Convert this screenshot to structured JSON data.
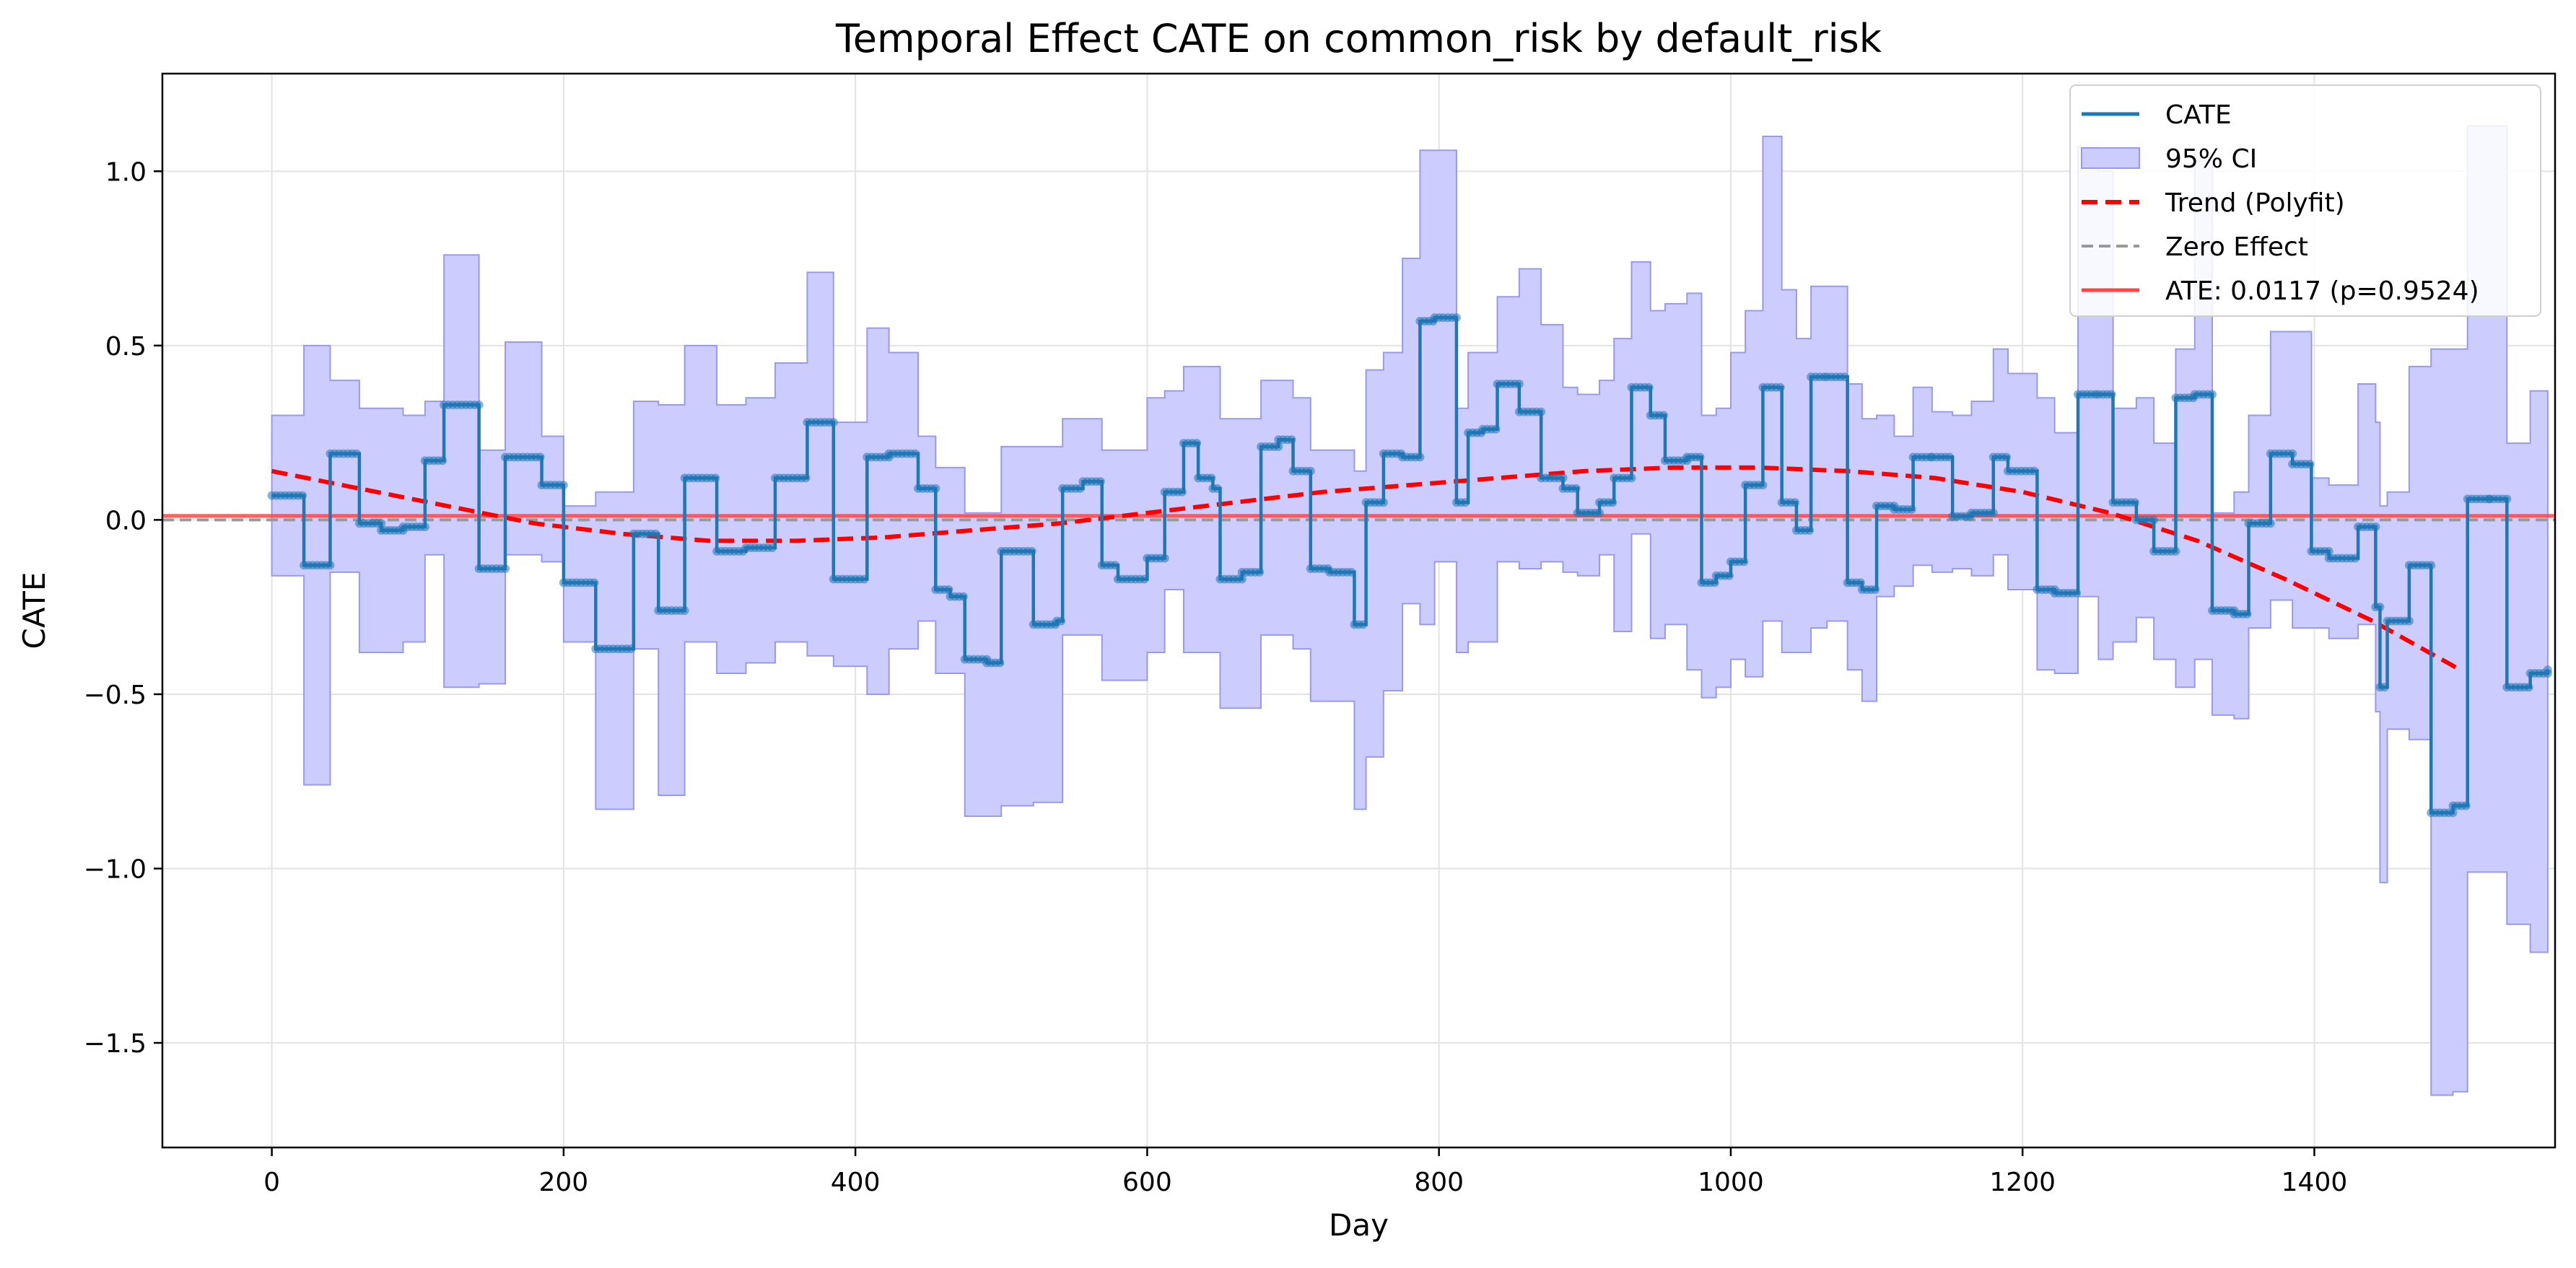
{
  "chart_data": {
    "type": "line",
    "title": "Temporal Effect CATE  on common_risk by default_risk",
    "xlabel": "Day",
    "ylabel": "CATE",
    "xlim": [
      -75,
      1565
    ],
    "ylim": [
      -1.8,
      1.28
    ],
    "xticks": [
      0,
      200,
      400,
      600,
      800,
      1000,
      1200,
      1400
    ],
    "yticks": [
      1.0,
      0.5,
      0.0,
      -0.5,
      -1.0,
      -1.5
    ],
    "ytick_labels": [
      "1.0",
      "0.5",
      "0.0",
      "−0.5",
      "−1.0",
      "−1.5"
    ],
    "grid": true,
    "legend_position": "upper-right",
    "legend": [
      "CATE",
      "95% CI",
      "Trend (Polyfit)",
      "Zero Effect",
      "ATE: 0.0117 (p=0.9524)"
    ],
    "ate_value": 0.0117,
    "ate_p": 0.9524,
    "zero_effect": 0.0,
    "colors": {
      "cate": "#1f77b4",
      "ci_fill": "#ccccff",
      "ci_edge": "#9999ee",
      "trend": "#ff0000",
      "zero": "#999999",
      "ate": "#ff4444"
    },
    "series": [
      {
        "name": "CATE",
        "steps": [
          [
            0,
            0.07
          ],
          [
            22,
            -0.13
          ],
          [
            40,
            0.19
          ],
          [
            60,
            -0.01
          ],
          [
            75,
            -0.03
          ],
          [
            90,
            -0.02
          ],
          [
            105,
            0.17
          ],
          [
            118,
            0.33
          ],
          [
            142,
            -0.14
          ],
          [
            160,
            0.18
          ],
          [
            185,
            0.1
          ],
          [
            200,
            -0.18
          ],
          [
            222,
            -0.37
          ],
          [
            248,
            -0.04
          ],
          [
            265,
            -0.26
          ],
          [
            283,
            0.12
          ],
          [
            305,
            -0.09
          ],
          [
            325,
            -0.08
          ],
          [
            345,
            0.12
          ],
          [
            367,
            0.28
          ],
          [
            385,
            -0.17
          ],
          [
            408,
            0.18
          ],
          [
            423,
            0.19
          ],
          [
            443,
            0.09
          ],
          [
            455,
            -0.2
          ],
          [
            465,
            -0.22
          ],
          [
            475,
            -0.4
          ],
          [
            490,
            -0.41
          ],
          [
            500,
            -0.09
          ],
          [
            522,
            -0.3
          ],
          [
            538,
            -0.29
          ],
          [
            542,
            0.09
          ],
          [
            556,
            0.11
          ],
          [
            569,
            -0.13
          ],
          [
            580,
            -0.17
          ],
          [
            600,
            -0.11
          ],
          [
            612,
            0.08
          ],
          [
            625,
            0.22
          ],
          [
            635,
            0.12
          ],
          [
            645,
            0.09
          ],
          [
            650,
            -0.17
          ],
          [
            665,
            -0.15
          ],
          [
            678,
            0.21
          ],
          [
            690,
            0.23
          ],
          [
            700,
            0.14
          ],
          [
            712,
            -0.14
          ],
          [
            725,
            -0.15
          ],
          [
            742,
            -0.3
          ],
          [
            750,
            0.05
          ],
          [
            762,
            0.19
          ],
          [
            775,
            0.18
          ],
          [
            787,
            0.57
          ],
          [
            797,
            0.58
          ],
          [
            812,
            0.05
          ],
          [
            820,
            0.25
          ],
          [
            830,
            0.26
          ],
          [
            840,
            0.39
          ],
          [
            855,
            0.31
          ],
          [
            870,
            0.12
          ],
          [
            885,
            0.09
          ],
          [
            895,
            0.02
          ],
          [
            910,
            0.05
          ],
          [
            920,
            0.12
          ],
          [
            932,
            0.38
          ],
          [
            945,
            0.3
          ],
          [
            955,
            0.17
          ],
          [
            970,
            0.18
          ],
          [
            980,
            -0.18
          ],
          [
            990,
            -0.16
          ],
          [
            1000,
            -0.12
          ],
          [
            1010,
            0.1
          ],
          [
            1022,
            0.38
          ],
          [
            1035,
            0.05
          ],
          [
            1045,
            -0.03
          ],
          [
            1055,
            0.41
          ],
          [
            1066,
            0.41
          ],
          [
            1080,
            -0.18
          ],
          [
            1090,
            -0.2
          ],
          [
            1100,
            0.04
          ],
          [
            1112,
            0.03
          ],
          [
            1125,
            0.18
          ],
          [
            1138,
            0.18
          ],
          [
            1152,
            0.01
          ],
          [
            1165,
            0.02
          ],
          [
            1180,
            0.18
          ],
          [
            1190,
            0.14
          ],
          [
            1210,
            -0.2
          ],
          [
            1222,
            -0.21
          ],
          [
            1238,
            0.36
          ],
          [
            1252,
            0.36
          ],
          [
            1262,
            0.05
          ],
          [
            1278,
            0.0
          ],
          [
            1290,
            -0.09
          ],
          [
            1305,
            0.35
          ],
          [
            1318,
            0.36
          ],
          [
            1330,
            -0.26
          ],
          [
            1345,
            -0.27
          ],
          [
            1355,
            -0.01
          ],
          [
            1370,
            0.19
          ],
          [
            1385,
            0.16
          ],
          [
            1398,
            -0.09
          ],
          [
            1410,
            -0.11
          ],
          [
            1430,
            -0.02
          ],
          [
            1442,
            -0.25
          ],
          [
            1445,
            -0.48
          ],
          [
            1450,
            -0.29
          ],
          [
            1465,
            -0.13
          ],
          [
            1480,
            -0.84
          ],
          [
            1495,
            -0.82
          ],
          [
            1505,
            0.06
          ],
          [
            1520,
            0.06
          ],
          [
            1532,
            -0.48
          ],
          [
            1548,
            -0.44
          ],
          [
            1560,
            -0.43
          ]
        ]
      },
      {
        "name": "95% CI",
        "bands": [
          [
            0,
            -0.16,
            0.3
          ],
          [
            22,
            -0.76,
            0.5
          ],
          [
            40,
            -0.15,
            0.4
          ],
          [
            60,
            -0.38,
            0.32
          ],
          [
            90,
            -0.35,
            0.3
          ],
          [
            105,
            -0.1,
            0.34
          ],
          [
            118,
            -0.48,
            0.76
          ],
          [
            142,
            -0.47,
            0.2
          ],
          [
            160,
            -0.1,
            0.51
          ],
          [
            185,
            -0.12,
            0.24
          ],
          [
            200,
            -0.35,
            0.04
          ],
          [
            222,
            -0.83,
            0.08
          ],
          [
            248,
            -0.37,
            0.34
          ],
          [
            265,
            -0.79,
            0.33
          ],
          [
            283,
            -0.35,
            0.5
          ],
          [
            305,
            -0.44,
            0.33
          ],
          [
            325,
            -0.41,
            0.35
          ],
          [
            345,
            -0.35,
            0.45
          ],
          [
            367,
            -0.39,
            0.71
          ],
          [
            385,
            -0.42,
            0.28
          ],
          [
            408,
            -0.5,
            0.55
          ],
          [
            423,
            -0.37,
            0.48
          ],
          [
            443,
            -0.29,
            0.24
          ],
          [
            455,
            -0.44,
            0.15
          ],
          [
            475,
            -0.85,
            0.02
          ],
          [
            500,
            -0.82,
            0.21
          ],
          [
            522,
            -0.81,
            0.21
          ],
          [
            542,
            -0.33,
            0.29
          ],
          [
            569,
            -0.46,
            0.2
          ],
          [
            600,
            -0.38,
            0.35
          ],
          [
            612,
            -0.2,
            0.37
          ],
          [
            625,
            -0.38,
            0.44
          ],
          [
            650,
            -0.54,
            0.29
          ],
          [
            678,
            -0.33,
            0.4
          ],
          [
            700,
            -0.37,
            0.35
          ],
          [
            712,
            -0.52,
            0.2
          ],
          [
            742,
            -0.83,
            0.14
          ],
          [
            750,
            -0.68,
            0.43
          ],
          [
            762,
            -0.49,
            0.48
          ],
          [
            775,
            -0.24,
            0.75
          ],
          [
            787,
            -0.3,
            1.06
          ],
          [
            797,
            -0.12,
            1.06
          ],
          [
            812,
            -0.38,
            0.32
          ],
          [
            820,
            -0.35,
            0.48
          ],
          [
            840,
            -0.12,
            0.64
          ],
          [
            855,
            -0.14,
            0.72
          ],
          [
            870,
            -0.12,
            0.56
          ],
          [
            885,
            -0.15,
            0.38
          ],
          [
            895,
            -0.16,
            0.36
          ],
          [
            910,
            -0.1,
            0.4
          ],
          [
            920,
            -0.32,
            0.52
          ],
          [
            932,
            -0.04,
            0.74
          ],
          [
            945,
            -0.34,
            0.6
          ],
          [
            955,
            -0.3,
            0.62
          ],
          [
            970,
            -0.43,
            0.65
          ],
          [
            980,
            -0.51,
            0.3
          ],
          [
            990,
            -0.48,
            0.32
          ],
          [
            1000,
            -0.4,
            0.48
          ],
          [
            1010,
            -0.45,
            0.6
          ],
          [
            1022,
            -0.29,
            1.1
          ],
          [
            1035,
            -0.38,
            0.66
          ],
          [
            1045,
            -0.38,
            0.52
          ],
          [
            1055,
            -0.31,
            0.67
          ],
          [
            1066,
            -0.29,
            0.67
          ],
          [
            1080,
            -0.43,
            0.39
          ],
          [
            1090,
            -0.52,
            0.29
          ],
          [
            1100,
            -0.22,
            0.3
          ],
          [
            1112,
            -0.19,
            0.24
          ],
          [
            1125,
            -0.13,
            0.38
          ],
          [
            1138,
            -0.15,
            0.31
          ],
          [
            1152,
            -0.14,
            0.3
          ],
          [
            1165,
            -0.16,
            0.34
          ],
          [
            1180,
            -0.1,
            0.49
          ],
          [
            1190,
            -0.2,
            0.42
          ],
          [
            1210,
            -0.43,
            0.35
          ],
          [
            1222,
            -0.44,
            0.25
          ],
          [
            1238,
            -0.22,
            1.07
          ],
          [
            1252,
            -0.4,
            1.0
          ],
          [
            1262,
            -0.35,
            0.32
          ],
          [
            1278,
            -0.28,
            0.35
          ],
          [
            1290,
            -0.4,
            0.22
          ],
          [
            1305,
            -0.48,
            0.49
          ],
          [
            1318,
            -0.4,
            1.03
          ],
          [
            1330,
            -0.56,
            0.02
          ],
          [
            1345,
            -0.57,
            0.08
          ],
          [
            1355,
            -0.31,
            0.3
          ],
          [
            1370,
            -0.23,
            0.54
          ],
          [
            1385,
            -0.31,
            0.54
          ],
          [
            1398,
            -0.31,
            0.12
          ],
          [
            1410,
            -0.34,
            0.1
          ],
          [
            1430,
            -0.3,
            0.39
          ],
          [
            1442,
            -0.55,
            0.28
          ],
          [
            1445,
            -1.04,
            0.04
          ],
          [
            1450,
            -0.6,
            0.08
          ],
          [
            1465,
            -0.63,
            0.44
          ],
          [
            1480,
            -1.65,
            0.49
          ],
          [
            1495,
            -1.64,
            0.49
          ],
          [
            1505,
            -1.01,
            1.13
          ],
          [
            1520,
            -1.01,
            1.13
          ],
          [
            1532,
            -1.16,
            0.22
          ],
          [
            1548,
            -1.24,
            0.37
          ],
          [
            1560,
            -1.24,
            0.37
          ]
        ]
      },
      {
        "name": "Trend (Polyfit)",
        "points": [
          [
            0,
            0.14
          ],
          [
            60,
            0.09
          ],
          [
            120,
            0.04
          ],
          [
            180,
            -0.01
          ],
          [
            240,
            -0.04
          ],
          [
            300,
            -0.06
          ],
          [
            360,
            -0.06
          ],
          [
            420,
            -0.05
          ],
          [
            480,
            -0.03
          ],
          [
            540,
            -0.01
          ],
          [
            600,
            0.02
          ],
          [
            660,
            0.05
          ],
          [
            720,
            0.08
          ],
          [
            780,
            0.1
          ],
          [
            840,
            0.12
          ],
          [
            900,
            0.14
          ],
          [
            960,
            0.15
          ],
          [
            1020,
            0.15
          ],
          [
            1080,
            0.14
          ],
          [
            1140,
            0.12
          ],
          [
            1200,
            0.08
          ],
          [
            1260,
            0.02
          ],
          [
            1320,
            -0.06
          ],
          [
            1380,
            -0.17
          ],
          [
            1440,
            -0.29
          ],
          [
            1500,
            -0.43
          ]
        ]
      }
    ]
  }
}
